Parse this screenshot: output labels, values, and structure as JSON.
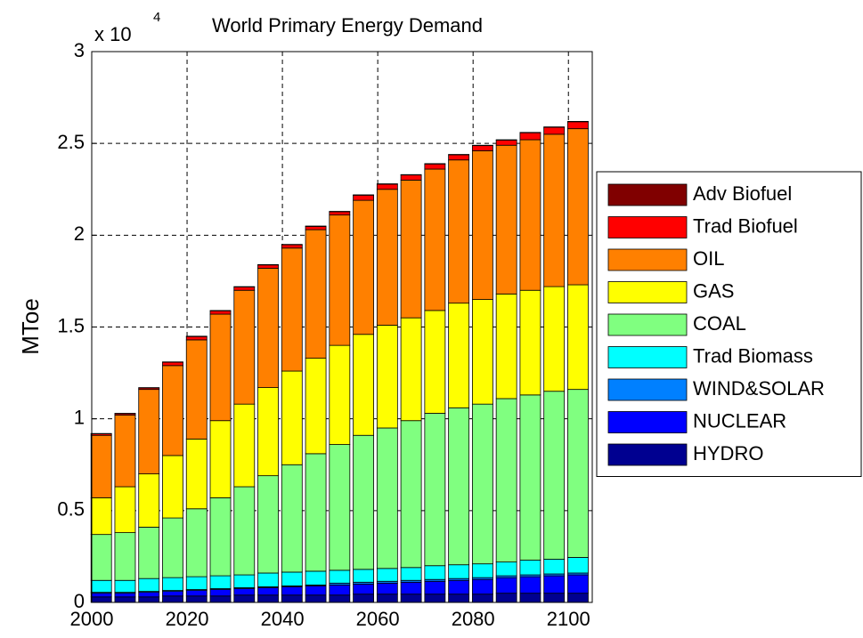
{
  "chart_data": {
    "type": "stacked_bar",
    "title": "World Primary Energy Demand",
    "y_multiplier": {
      "base": "x 10",
      "exponent": "4"
    },
    "ylabel": "MToe",
    "x": [
      2002,
      2007,
      2012,
      2017,
      2022,
      2027,
      2032,
      2037,
      2042,
      2047,
      2052,
      2057,
      2062,
      2067,
      2072,
      2077,
      2082,
      2087,
      2092,
      2097,
      2102
    ],
    "xlim": [
      2000,
      2105
    ],
    "xticks": [
      2000,
      2020,
      2040,
      2060,
      2080,
      2100
    ],
    "ylim": [
      0,
      3
    ],
    "yticks": [
      0,
      0.5,
      1,
      1.5,
      2,
      2.5,
      3
    ],
    "grid": true,
    "legend": "right",
    "series": [
      {
        "name": "HYDRO",
        "color": "#000090",
        "values": [
          0.03,
          0.03,
          0.03,
          0.035,
          0.035,
          0.035,
          0.04,
          0.04,
          0.04,
          0.04,
          0.04,
          0.045,
          0.045,
          0.045,
          0.045,
          0.045,
          0.045,
          0.05,
          0.05,
          0.05,
          0.05
        ]
      },
      {
        "name": "NUCLEAR",
        "color": "#0000ff",
        "values": [
          0.02,
          0.02,
          0.025,
          0.025,
          0.03,
          0.035,
          0.035,
          0.04,
          0.045,
          0.05,
          0.055,
          0.055,
          0.06,
          0.065,
          0.07,
          0.075,
          0.08,
          0.085,
          0.09,
          0.095,
          0.1
        ]
      },
      {
        "name": "WIND&SOLAR",
        "color": "#0080ff",
        "values": [
          0.005,
          0.005,
          0.005,
          0.005,
          0.005,
          0.005,
          0.005,
          0.005,
          0.005,
          0.005,
          0.01,
          0.01,
          0.01,
          0.01,
          0.01,
          0.01,
          0.01,
          0.01,
          0.01,
          0.01,
          0.01
        ]
      },
      {
        "name": "Trad Biomass",
        "color": "#00ffff",
        "values": [
          0.065,
          0.065,
          0.07,
          0.07,
          0.07,
          0.07,
          0.07,
          0.075,
          0.075,
          0.075,
          0.07,
          0.07,
          0.07,
          0.07,
          0.075,
          0.075,
          0.075,
          0.075,
          0.08,
          0.08,
          0.085
        ]
      },
      {
        "name": "COAL",
        "color": "#80ff80",
        "values": [
          0.25,
          0.26,
          0.28,
          0.325,
          0.37,
          0.425,
          0.48,
          0.53,
          0.585,
          0.64,
          0.685,
          0.73,
          0.765,
          0.8,
          0.83,
          0.855,
          0.87,
          0.89,
          0.9,
          0.915,
          0.915
        ]
      },
      {
        "name": "GAS",
        "color": "#ffff00",
        "values": [
          0.2,
          0.25,
          0.29,
          0.34,
          0.38,
          0.42,
          0.45,
          0.48,
          0.51,
          0.52,
          0.54,
          0.55,
          0.56,
          0.56,
          0.56,
          0.57,
          0.57,
          0.57,
          0.57,
          0.57,
          0.57
        ]
      },
      {
        "name": "OIL",
        "color": "#ff8000",
        "values": [
          0.34,
          0.39,
          0.46,
          0.49,
          0.54,
          0.58,
          0.62,
          0.65,
          0.67,
          0.7,
          0.71,
          0.73,
          0.74,
          0.75,
          0.77,
          0.78,
          0.81,
          0.81,
          0.82,
          0.83,
          0.85
        ]
      },
      {
        "name": "Trad Biofuel",
        "color": "#ff0000",
        "values": [
          0.008,
          0.008,
          0.008,
          0.018,
          0.018,
          0.018,
          0.018,
          0.018,
          0.018,
          0.018,
          0.018,
          0.028,
          0.028,
          0.028,
          0.028,
          0.028,
          0.028,
          0.028,
          0.038,
          0.038,
          0.038
        ]
      },
      {
        "name": "Adv Biofuel",
        "color": "#800000",
        "values": [
          0.002,
          0.002,
          0.002,
          0.002,
          0.002,
          0.002,
          0.002,
          0.002,
          0.002,
          0.002,
          0.002,
          0.002,
          0.002,
          0.002,
          0.002,
          0.002,
          0.002,
          0.002,
          0.002,
          0.002,
          0.002
        ]
      }
    ]
  }
}
